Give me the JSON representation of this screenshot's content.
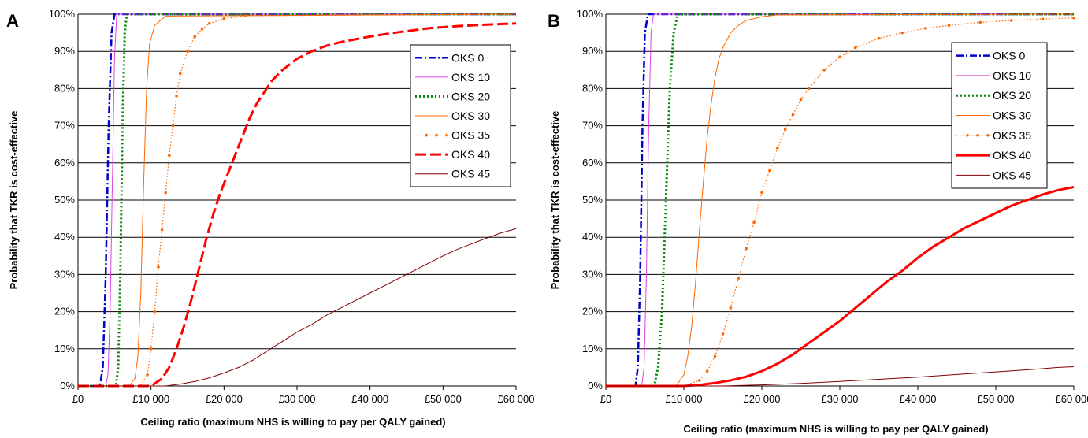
{
  "chart_data": [
    {
      "type": "line",
      "panel_label": "A",
      "title": "",
      "xlabel": "Ceiling ratio (maximum NHS is willing to pay per QALY gained)",
      "ylabel": "Probability that TKR is cost-effective",
      "xlim": [
        0,
        60000
      ],
      "ylim": [
        0,
        100
      ],
      "x_ticks": [
        0,
        10000,
        20000,
        30000,
        40000,
        50000,
        60000
      ],
      "x_tick_labels": [
        "£0",
        "£10 000",
        "£20 000",
        "£30 000",
        "£40 000",
        "£50 000",
        "£60 000"
      ],
      "y_ticks": [
        0,
        10,
        20,
        30,
        40,
        50,
        60,
        70,
        80,
        90,
        100
      ],
      "y_tick_labels": [
        "0%",
        "10%",
        "20%",
        "30%",
        "40%",
        "50%",
        "60%",
        "70%",
        "80%",
        "90%",
        "100%"
      ],
      "grid": "horizontal",
      "legend_position": "top-right",
      "series": [
        {
          "name": "OKS 0",
          "color": "#0000cc",
          "style": "dashdot",
          "x": [
            0,
            3000,
            3400,
            3800,
            4200,
            4600,
            5000,
            60000
          ],
          "y": [
            0,
            0,
            5,
            30,
            70,
            95,
            100,
            100
          ]
        },
        {
          "name": "OKS 10",
          "color": "#e040e0",
          "style": "solid-thin",
          "x": [
            0,
            3800,
            4100,
            4400,
            4700,
            5000,
            5300,
            60000
          ],
          "y": [
            0,
            0,
            3,
            20,
            55,
            88,
            100,
            100
          ]
        },
        {
          "name": "OKS 20",
          "color": "#008800",
          "style": "dotted",
          "x": [
            0,
            5200,
            5500,
            5800,
            6100,
            6400,
            6700,
            60000
          ],
          "y": [
            0,
            0,
            5,
            30,
            70,
            95,
            100,
            100
          ]
        },
        {
          "name": "OKS 30",
          "color": "#ff6600",
          "style": "solid-thin",
          "x": [
            0,
            7000,
            7800,
            8200,
            8600,
            9000,
            9400,
            9800,
            10500,
            12000,
            60000
          ],
          "y": [
            0,
            0,
            2,
            8,
            25,
            55,
            80,
            92,
            97,
            99.5,
            100
          ]
        },
        {
          "name": "OKS 35",
          "color": "#ff6600",
          "style": "dotted-markers",
          "x": [
            0,
            8500,
            9500,
            10000,
            10500,
            11000,
            11500,
            12000,
            12500,
            13000,
            13500,
            14000,
            15000,
            16000,
            17000,
            18000,
            20000,
            23000,
            60000
          ],
          "y": [
            0,
            0,
            3,
            10,
            20,
            32,
            42,
            52,
            62,
            70,
            78,
            84,
            90,
            94,
            96,
            97.5,
            98.8,
            99.6,
            100
          ]
        },
        {
          "name": "OKS 40",
          "color": "#ff0000",
          "style": "dashed-thick",
          "x": [
            0,
            10000,
            11500,
            12500,
            13500,
            14500,
            15500,
            16500,
            17500,
            18500,
            19500,
            20500,
            21500,
            22500,
            23500,
            24500,
            25500,
            26500,
            28000,
            30000,
            32000,
            34000,
            36000,
            40000,
            44000,
            48000,
            52000,
            56000,
            60000
          ],
          "y": [
            0,
            0,
            2,
            5,
            10,
            16,
            23,
            31,
            39,
            46,
            52,
            57,
            62,
            67,
            72,
            76,
            79,
            82,
            85,
            88,
            90,
            91.5,
            92.5,
            94,
            95.2,
            96.2,
            96.8,
            97.2,
            97.5
          ]
        },
        {
          "name": "OKS 45",
          "color": "#800000",
          "style": "solid-thin",
          "x": [
            0,
            12000,
            14000,
            16000,
            18000,
            20000,
            22000,
            24000,
            26000,
            28000,
            30000,
            32000,
            34000,
            36000,
            38000,
            40000,
            42000,
            44000,
            46000,
            48000,
            50000,
            52000,
            54000,
            56000,
            58000,
            60000
          ],
          "y": [
            0,
            0,
            0.5,
            1.2,
            2.2,
            3.5,
            5,
            7,
            9.5,
            12,
            14.5,
            16.5,
            19,
            21,
            23,
            25,
            27,
            29,
            31,
            33,
            35,
            36.8,
            38.3,
            39.8,
            41.2,
            42.3
          ]
        }
      ]
    },
    {
      "type": "line",
      "panel_label": "B",
      "title": "",
      "xlabel": "Ceiling ratio (maximum NHS is willing to pay per QALY gained)",
      "ylabel": "Probability that TKR is cost-effective",
      "xlim": [
        0,
        60000
      ],
      "ylim": [
        0,
        100
      ],
      "x_ticks": [
        0,
        10000,
        20000,
        30000,
        40000,
        50000,
        60000
      ],
      "x_tick_labels": [
        "£0",
        "£10 000",
        "£20 000",
        "£30 000",
        "£40 000",
        "£50 000",
        "£60 000"
      ],
      "y_ticks": [
        0,
        10,
        20,
        30,
        40,
        50,
        60,
        70,
        80,
        90,
        100
      ],
      "y_tick_labels": [
        "0%",
        "10%",
        "20%",
        "30%",
        "40%",
        "50%",
        "60%",
        "70%",
        "80%",
        "90%",
        "100%"
      ],
      "grid": "horizontal",
      "legend_position": "top-right",
      "series": [
        {
          "name": "OKS 0",
          "color": "#0000cc",
          "style": "dashdot",
          "x": [
            0,
            3800,
            4100,
            4400,
            4700,
            5000,
            5400,
            60000
          ],
          "y": [
            0,
            0,
            5,
            30,
            70,
            95,
            100,
            100
          ]
        },
        {
          "name": "OKS 10",
          "color": "#e040e0",
          "style": "solid-thin",
          "x": [
            0,
            4600,
            4900,
            5200,
            5500,
            5800,
            6100,
            60000
          ],
          "y": [
            0,
            0,
            5,
            30,
            70,
            95,
            100,
            100
          ]
        },
        {
          "name": "OKS 20",
          "color": "#008800",
          "style": "dotted",
          "x": [
            0,
            6200,
            6700,
            7200,
            7700,
            8200,
            8700,
            9200,
            60000
          ],
          "y": [
            0,
            0,
            5,
            20,
            50,
            80,
            95,
            100,
            100
          ]
        },
        {
          "name": "OKS 30",
          "color": "#ff6600",
          "style": "solid-thin",
          "x": [
            0,
            9000,
            10000,
            10500,
            11000,
            11500,
            12000,
            12500,
            13000,
            13500,
            14000,
            14500,
            15000,
            16000,
            17000,
            18000,
            20000,
            22000,
            60000
          ],
          "y": [
            0,
            0,
            3,
            8,
            16,
            28,
            42,
            55,
            67,
            76,
            83,
            88,
            91,
            95,
            97,
            98.3,
            99.3,
            99.8,
            100
          ]
        },
        {
          "name": "OKS 35",
          "color": "#ff6600",
          "style": "dotted-markers",
          "x": [
            0,
            10000,
            12000,
            13000,
            14000,
            15000,
            16000,
            17000,
            18000,
            19000,
            20000,
            21000,
            22000,
            23000,
            24000,
            25000,
            26000,
            28000,
            30000,
            32000,
            35000,
            38000,
            41000,
            44000,
            48000,
            52000,
            56000,
            60000
          ],
          "y": [
            0,
            0,
            1.5,
            4,
            8,
            14,
            21,
            29,
            37,
            44,
            52,
            58,
            64,
            69,
            73,
            77,
            80,
            85,
            88.5,
            91,
            93.5,
            95,
            96.2,
            97,
            97.8,
            98.3,
            98.7,
            99
          ]
        },
        {
          "name": "OKS 40",
          "color": "#ff0000",
          "style": "solid-thick",
          "x": [
            0,
            10000,
            12000,
            14000,
            16000,
            18000,
            20000,
            22000,
            24000,
            26000,
            28000,
            30000,
            32000,
            34000,
            36000,
            38000,
            40000,
            42000,
            44000,
            46000,
            48000,
            50000,
            52000,
            54000,
            56000,
            58000,
            60000
          ],
          "y": [
            0,
            0,
            0.3,
            0.8,
            1.5,
            2.5,
            4,
            6,
            8.5,
            11.5,
            14.5,
            17.5,
            21,
            24.5,
            28,
            31,
            34.5,
            37.5,
            40,
            42.5,
            44.5,
            46.5,
            48.5,
            50,
            51.5,
            52.7,
            53.5
          ]
        },
        {
          "name": "OKS 45",
          "color": "#800000",
          "style": "solid-thin",
          "x": [
            0,
            15000,
            20000,
            25000,
            30000,
            35000,
            40000,
            45000,
            50000,
            55000,
            58000,
            60000
          ],
          "y": [
            0,
            0,
            0.3,
            0.7,
            1.2,
            1.8,
            2.4,
            3.1,
            3.8,
            4.5,
            5,
            5.2
          ]
        }
      ]
    }
  ]
}
